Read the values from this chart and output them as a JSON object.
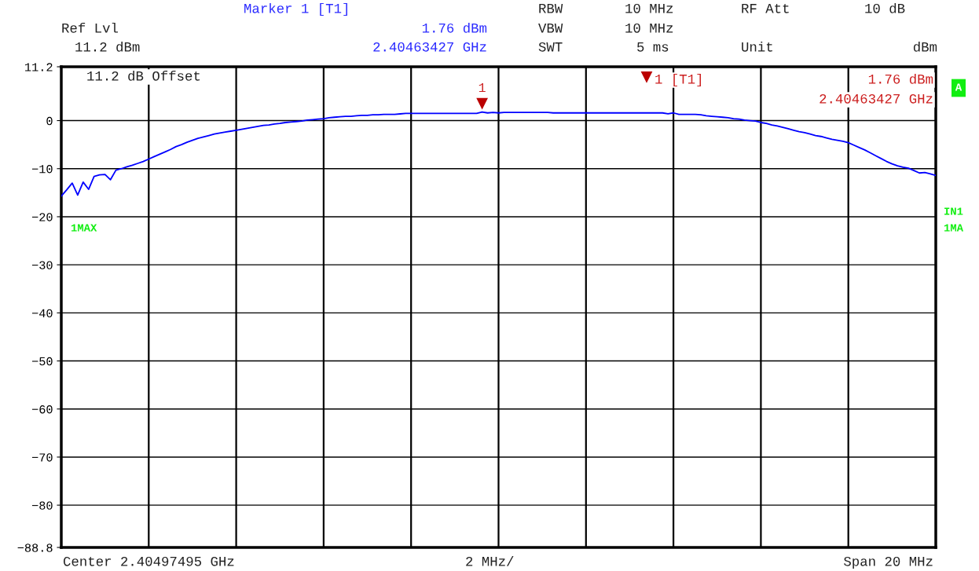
{
  "chart_data": {
    "type": "line",
    "categories": [
      null,
      null,
      null,
      null,
      null,
      null,
      null,
      null,
      null,
      null,
      null,
      null,
      null,
      null,
      null,
      null,
      null,
      null,
      null,
      null,
      null,
      null,
      null,
      null,
      null,
      null,
      null,
      null,
      null,
      null,
      null,
      null,
      null,
      null,
      null,
      null,
      null,
      null,
      null,
      null,
      null,
      null,
      null,
      null,
      null,
      null,
      null,
      null,
      null,
      null,
      null,
      null,
      null,
      null,
      null,
      null,
      null,
      null,
      null,
      null,
      null,
      null,
      null,
      null,
      null,
      null,
      null,
      null,
      null,
      null,
      null,
      null,
      null,
      null,
      null,
      null,
      null,
      null,
      null,
      null,
      null,
      null,
      null,
      null,
      null,
      null,
      null,
      null,
      null,
      null,
      null,
      null,
      null,
      null,
      null,
      null,
      null,
      null,
      null,
      null,
      null,
      null,
      null,
      null,
      null,
      null,
      null,
      null,
      null,
      null,
      null,
      null,
      null,
      null,
      null,
      null,
      null,
      null,
      null,
      null,
      null,
      null,
      null,
      null,
      null,
      null,
      null,
      null,
      null,
      null,
      null,
      null,
      null,
      null,
      null,
      null,
      null,
      null,
      null,
      null,
      null,
      null,
      null,
      null,
      null,
      null,
      null,
      null,
      null,
      null,
      null,
      null,
      null,
      null,
      null,
      null,
      null,
      null,
      null,
      null,
      null
    ],
    "series": [
      {
        "color": "#0000ff",
        "values": [
          -15.7,
          -14.4,
          -13.0,
          -15.5,
          -12.8,
          -14.3,
          -11.6,
          -11.3,
          -11.2,
          -12.3,
          -10.3,
          -10.0,
          -9.6,
          -9.3,
          -8.9,
          -8.5,
          -8.0,
          -7.5,
          -7.0,
          -6.5,
          -6.0,
          -5.4,
          -5.0,
          -4.5,
          -4.1,
          -3.7,
          -3.4,
          -3.1,
          -2.8,
          -2.6,
          -2.4,
          -2.2,
          -2.0,
          -1.8,
          -1.6,
          -1.4,
          -1.2,
          -1.0,
          -0.9,
          -0.7,
          -0.6,
          -0.4,
          -0.3,
          -0.2,
          -0.1,
          0.1,
          0.2,
          0.3,
          0.4,
          0.6,
          0.7,
          0.8,
          0.9,
          0.9,
          1.0,
          1.1,
          1.1,
          1.2,
          1.2,
          1.3,
          1.3,
          1.3,
          1.4,
          1.5,
          1.5,
          1.5,
          1.5,
          1.5,
          1.5,
          1.5,
          1.5,
          1.5,
          1.5,
          1.5,
          1.5,
          1.5,
          1.5,
          1.8,
          1.6,
          1.7,
          1.6,
          1.7,
          1.7,
          1.7,
          1.7,
          1.7,
          1.7,
          1.7,
          1.7,
          1.7,
          1.6,
          1.6,
          1.6,
          1.6,
          1.6,
          1.6,
          1.6,
          1.6,
          1.6,
          1.6,
          1.6,
          1.6,
          1.6,
          1.6,
          1.6,
          1.6,
          1.6,
          1.6,
          1.6,
          1.6,
          1.6,
          1.4,
          1.6,
          1.3,
          1.3,
          1.3,
          1.3,
          1.2,
          1.0,
          0.9,
          0.8,
          0.7,
          0.6,
          0.4,
          0.3,
          0.1,
          0.0,
          -0.1,
          -0.4,
          -0.6,
          -0.9,
          -1.1,
          -1.4,
          -1.7,
          -2.0,
          -2.3,
          -2.5,
          -2.8,
          -3.1,
          -3.3,
          -3.6,
          -3.9,
          -4.1,
          -4.3,
          -4.6,
          -5.1,
          -5.6,
          -6.1,
          -6.7,
          -7.3,
          -7.9,
          -8.5,
          -9.0,
          -9.4,
          -9.7,
          -9.9,
          -10.4,
          -10.9,
          -10.8,
          -11.1,
          -11.4
        ]
      }
    ],
    "ylim": [
      -88.8,
      11.2
    ],
    "yticks": [
      11.2,
      0,
      {
        "value": -10,
        "label": "−10"
      },
      {
        "value": -20,
        "label": "−20"
      },
      {
        "value": -30,
        "label": "−30"
      },
      {
        "value": -40,
        "label": "−40"
      },
      {
        "value": -50,
        "label": "−50"
      },
      {
        "value": -60,
        "label": "−60"
      },
      {
        "value": -70,
        "label": "−70"
      },
      {
        "value": -80,
        "label": "−80"
      },
      {
        "value": -88.8,
        "label": "−88.8"
      }
    ],
    "grid": true,
    "annotations": [
      {
        "text": "1",
        "y": 1.76
      },
      "Marker 1 [T1]",
      "RBW",
      "10 MHz",
      "RF Att",
      "10 dB",
      "Ref Lvl",
      "1.76 dBm",
      "VBW",
      "10 MHz",
      "11.2 dBm",
      "2.40463427 GHz",
      "SWT",
      "5 ms",
      "Unit",
      "dBm",
      "11.2 dB Offset",
      "1 [T1]",
      "1.76 dBm",
      "2.40463427 GHz",
      "1MAX",
      "A",
      "IN1",
      "1MA",
      "Center 2.40497495 GHz",
      "2 MHz/",
      "Span 20 MHz"
    ]
  }
}
